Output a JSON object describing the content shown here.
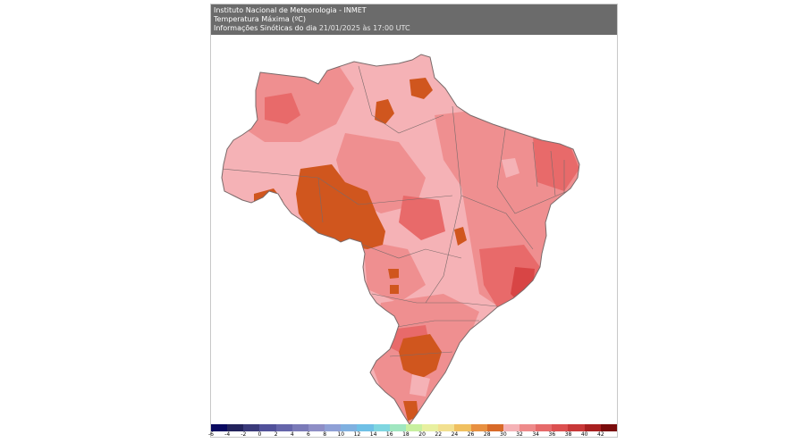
{
  "header": {
    "institute": "Instituto Nacional de Meteorologia - INMET",
    "variable": "Temperatura Máxima (ºC)",
    "info_label": "Informações Sinóticas do dia",
    "datetime": "21/01/2025 às 17:00 UTC"
  },
  "legend": {
    "labels": [
      "-6",
      "-4",
      "-2",
      "0",
      "2",
      "4",
      "6",
      "8",
      "10",
      "12",
      "14",
      "16",
      "18",
      "20",
      "22",
      "24",
      "26",
      "28",
      "30",
      "32",
      "34",
      "36",
      "38",
      "40",
      "42"
    ],
    "colors": [
      "#0a0a60",
      "#23235c",
      "#3a3a7a",
      "#51519a",
      "#6565aa",
      "#7a7ab8",
      "#8e8ec6",
      "#8fa0d6",
      "#7fb0e0",
      "#6fc0e6",
      "#7fd6e0",
      "#a0e6c0",
      "#c8f0a0",
      "#e8f0a0",
      "#f2e090",
      "#f0c060",
      "#e89040",
      "#d86a28",
      "#f5b2b6",
      "#ee8a8a",
      "#e66a6a",
      "#dc5050",
      "#c83838",
      "#a82020",
      "#7a0c0c"
    ]
  },
  "map": {
    "colors": {
      "c30": "#f5b2b6",
      "c32": "#ef8f90",
      "c34": "#e86a6a",
      "c36": "#d84545",
      "c26": "#d0561e",
      "outline": "#7a6a6a"
    }
  }
}
